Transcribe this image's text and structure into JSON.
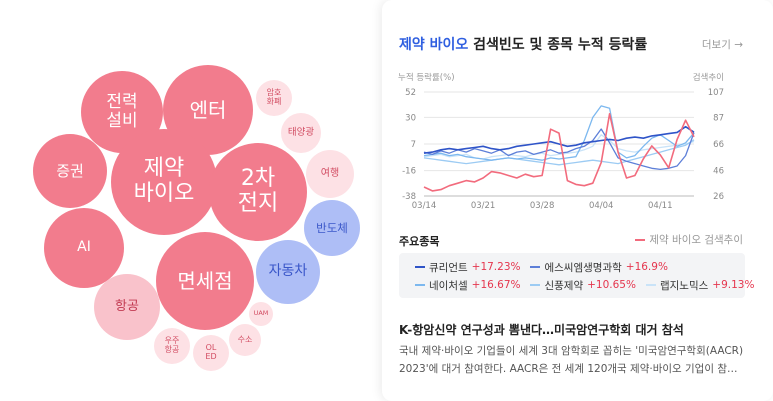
{
  "bubbles": [
    {
      "label": "전력\n설비",
      "tone": "strong"
    },
    {
      "label": "엔터",
      "tone": "strong"
    },
    {
      "label": "암호\n화폐",
      "tone": "light"
    },
    {
      "label": "태양광",
      "tone": "light"
    },
    {
      "label": "증권",
      "tone": "strong"
    },
    {
      "label": "제약\n바이오",
      "tone": "strong"
    },
    {
      "label": "2차\n전지",
      "tone": "strong"
    },
    {
      "label": "여행",
      "tone": "light"
    },
    {
      "label": "AI",
      "tone": "strong"
    },
    {
      "label": "반도체",
      "tone": "blue"
    },
    {
      "label": "자동차",
      "tone": "blue"
    },
    {
      "label": "면세점",
      "tone": "strong"
    },
    {
      "label": "항공",
      "tone": "mid"
    },
    {
      "label": "UAM",
      "tone": "light"
    },
    {
      "label": "우주\n항공",
      "tone": "light"
    },
    {
      "label": "OL\nED",
      "tone": "light"
    },
    {
      "label": "수소",
      "tone": "light"
    }
  ],
  "card": {
    "title_highlight": "제약 바이오",
    "title_rest": " 검색빈도 및 종목 누적 등락률",
    "more_label": "더보기 →",
    "section_title": "주요종목",
    "search_legend": "제약 바이오 검색추이"
  },
  "chart_data": {
    "type": "line",
    "x": [
      "03/14",
      "03/15",
      "03/16",
      "03/17",
      "03/18",
      "03/19",
      "03/20",
      "03/21",
      "03/22",
      "03/23",
      "03/24",
      "03/25",
      "03/26",
      "03/27",
      "03/28",
      "03/29",
      "03/30",
      "03/31",
      "04/01",
      "04/02",
      "04/03",
      "04/04",
      "04/05",
      "04/06",
      "04/07",
      "04/08",
      "04/09",
      "04/10",
      "04/11",
      "04/12",
      "04/13",
      "04/14",
      "04/15"
    ],
    "x_ticks": [
      "03/14",
      "03/21",
      "03/28",
      "04/04",
      "04/11"
    ],
    "ylabel": "누적 등락률(%)",
    "y2label": "검색추이",
    "ylim": [
      -38,
      52
    ],
    "y_ticks": [
      52,
      30,
      7,
      -16,
      -38
    ],
    "y2lim": [
      26,
      107
    ],
    "y2_ticks": [
      107,
      87,
      66,
      46,
      26
    ],
    "series": [
      {
        "name": "큐리언트",
        "color": "#2f54c8",
        "axis": "left",
        "values": [
          -1,
          0,
          2,
          3,
          2,
          3,
          4,
          5,
          3,
          2,
          3,
          5,
          6,
          7,
          8,
          9,
          7,
          5,
          6,
          8,
          9,
          10,
          11,
          10,
          12,
          13,
          12,
          14,
          15,
          16,
          17,
          22,
          17.23
        ]
      },
      {
        "name": "에스씨엠생명과학",
        "color": "#5d7fd8",
        "axis": "left",
        "values": [
          0,
          -2,
          1,
          -1,
          2,
          0,
          3,
          1,
          -1,
          2,
          -3,
          0,
          1,
          -2,
          0,
          2,
          -1,
          0,
          3,
          5,
          10,
          20,
          8,
          -5,
          -8,
          -10,
          -12,
          -14,
          -15,
          -14,
          -12,
          -3,
          16.9
        ]
      },
      {
        "name": "네이처셀",
        "color": "#7cb8ef",
        "axis": "left",
        "values": [
          -3,
          -2,
          -1,
          -3,
          -2,
          -4,
          -5,
          -6,
          -7,
          -6,
          -5,
          -6,
          -5,
          -6,
          -7,
          -5,
          -6,
          -5,
          -4,
          10,
          30,
          40,
          38,
          0,
          -5,
          -3,
          5,
          12,
          15,
          10,
          5,
          8,
          16.67
        ]
      },
      {
        "name": "신풍제약",
        "color": "#9ccbf3",
        "axis": "left",
        "values": [
          -5,
          -6,
          -7,
          -8,
          -9,
          -10,
          -9,
          -8,
          -7,
          -6,
          -5,
          -6,
          -7,
          -8,
          -9,
          -10,
          -11,
          -10,
          -9,
          -8,
          -7,
          -8,
          -9,
          -10,
          -8,
          -6,
          -4,
          -2,
          0,
          2,
          4,
          6,
          10.65
        ]
      },
      {
        "name": "랩지노믹스",
        "color": "#c9e3f8",
        "axis": "left",
        "values": [
          -4,
          -3,
          -2,
          -4,
          -3,
          -2,
          -5,
          -6,
          -4,
          -3,
          -2,
          -3,
          -4,
          -2,
          -1,
          -3,
          -2,
          -1,
          0,
          2,
          5,
          15,
          10,
          3,
          1,
          0,
          2,
          3,
          4,
          5,
          6,
          7,
          9.13
        ]
      },
      {
        "name": "제약 바이오 검색추이",
        "color": "#f26b7d",
        "axis": "right",
        "values": [
          33,
          30,
          31,
          34,
          36,
          38,
          37,
          40,
          45,
          44,
          42,
          40,
          43,
          41,
          42,
          78,
          75,
          38,
          35,
          34,
          36,
          52,
          90,
          60,
          40,
          42,
          55,
          65,
          58,
          48,
          70,
          85,
          72
        ]
      }
    ]
  },
  "stocks_rows": [
    [
      {
        "name": "큐리언트",
        "rate": "+17.23%",
        "color": "#2f54c8"
      },
      {
        "name": "에스씨엠생명과학",
        "rate": "+16.9%",
        "color": "#5d7fd8"
      }
    ],
    [
      {
        "name": "네이처셀",
        "rate": "+16.67%",
        "color": "#7cb8ef"
      },
      {
        "name": "신풍제약",
        "rate": "+10.65%",
        "color": "#9ccbf3"
      },
      {
        "name": "랩지노믹스",
        "rate": "+9.13%",
        "color": "#c9e3f8"
      }
    ]
  ],
  "news": {
    "title": "K-항암신약 연구성과 뽐낸다…미국암연구학회 대거 참석",
    "line1": "국내 제약·바이오 기업들이 세계 3대 암학회로 꼽히는 '미국암연구학회(AACR)",
    "line2": "2023'에 대거 참여한다. AACR은 전 세계 120개국 제약·바이오 기업이 참여해 암..."
  }
}
